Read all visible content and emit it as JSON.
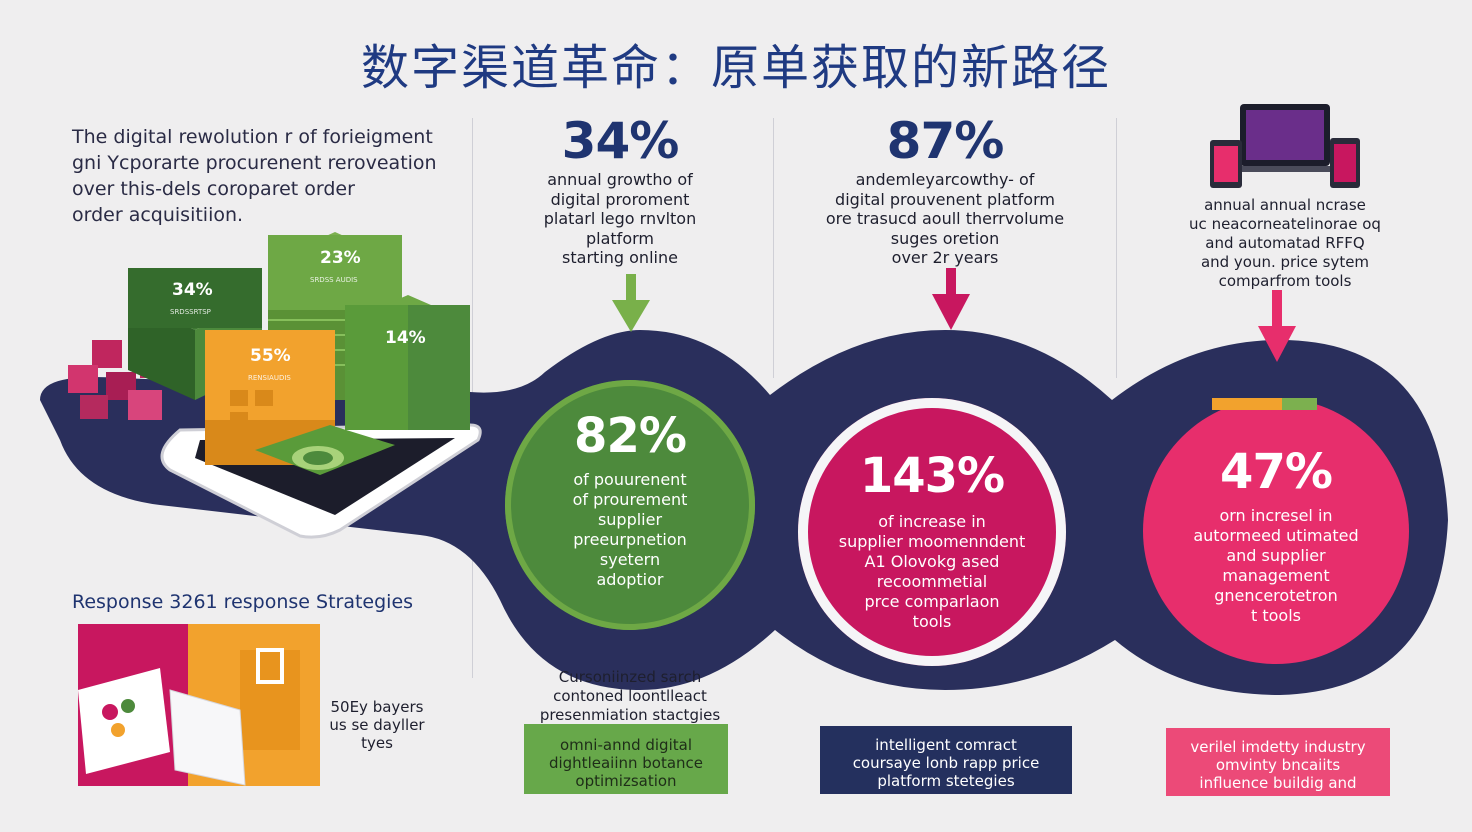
{
  "title": "数字渠道革命：原单获取的新路径",
  "intro": {
    "lines": [
      "The digital rewolution r of forieigment",
      "gni Ycporarte procurenent reroveation",
      "over this-dels coroparet order",
      "order acquisitiion."
    ]
  },
  "chart_data": {
    "type": "bar",
    "title": "数字渠道革命：原单获取的新路径",
    "cube_labels": [
      "34%",
      "23%",
      "55%",
      "14%"
    ],
    "cube_sublabels": [
      "SRDSSRTSP",
      "SRDSS AUDIS",
      "RENSIAUDIS"
    ],
    "stats": [
      {
        "value": "34%",
        "desc": [
          "annual growtho of",
          "digital proroment",
          "platarl lego rnvlton",
          "platform",
          "starting online"
        ]
      },
      {
        "value": "87%",
        "desc": [
          "andemleyarcowthy- of",
          "digital prouvenent platform",
          "ore trasucd aoull therrvolume",
          "suges oretion",
          "over 2r years"
        ]
      },
      {
        "value": "",
        "desc": [
          "annual annual ncrase",
          "uc neacorneatelinorae oq",
          "and automatad RFFQ",
          "and youn. price sytem",
          "comparfrom tools"
        ]
      }
    ],
    "circles": [
      {
        "value": "82%",
        "desc": [
          "of pouurenent",
          "of prourement",
          "supplier",
          "preeurpnetion",
          "syetern",
          "adoptior"
        ],
        "color": "#4d8a3c"
      },
      {
        "value": "143%",
        "desc": [
          "of increase in",
          "supplier moomenndent",
          "A1  Olovokg ased",
          "recoommetial",
          "prce comparlaon",
          "tools"
        ],
        "color": "#c8175f"
      },
      {
        "value": "47%",
        "desc": [
          "orn incresel in",
          "autormeed utimated",
          "and supplier",
          "management",
          "gnencerotetron",
          "t tools"
        ],
        "color": "#e72e6c"
      }
    ]
  },
  "response": {
    "heading": "Response 3261 response Strategies",
    "note": [
      "50Ey bayers",
      "us se dayller",
      "tyes"
    ]
  },
  "bottom": {
    "caption": [
      "Cursoniinzed sarch",
      "contoned loontlleact",
      "presenmiation stactgies"
    ],
    "boxes": [
      {
        "lines": [
          "omni-annd digital",
          "dightleaiinn botance",
          "optimizsation"
        ],
        "bg": "#67a84a",
        "color": "#1e2d18"
      },
      {
        "lines": [
          "intelligent comract",
          "coursaye lonb rapp price",
          "platform stetegies"
        ],
        "bg": "#24305e",
        "color": "#ffffff"
      },
      {
        "lines": [
          "verilel imdetty industry",
          "omvinty bncaiits",
          "influence buildig and"
        ],
        "bg": "#ec4a78",
        "color": "#ffffff"
      }
    ]
  },
  "colors": {
    "navy": "#2a2f5c",
    "green": "#4d8a3c",
    "magenta": "#c8175f",
    "pink": "#e72e6c",
    "orange": "#f2a22d",
    "title": "#1f3a82"
  }
}
